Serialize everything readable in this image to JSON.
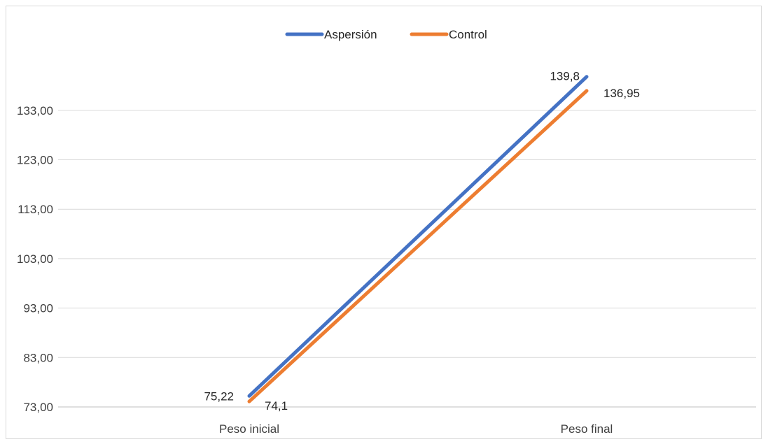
{
  "chart_data": {
    "type": "line",
    "categories": [
      "Peso inicial",
      "Peso final"
    ],
    "series": [
      {
        "name": "Aspersión",
        "color": "#4472C4",
        "values": [
          75.22,
          139.8
        ],
        "labels": [
          "75,22",
          "139,8"
        ]
      },
      {
        "name": "Control",
        "color": "#ED7D31",
        "values": [
          74.1,
          136.95
        ],
        "labels": [
          "74,1",
          "136,95"
        ]
      }
    ],
    "y_ticks": [
      73,
      83,
      93,
      103,
      113,
      123,
      133
    ],
    "y_tick_labels": [
      "73,00",
      "83,00",
      "93,00",
      "103,00",
      "113,00",
      "123,00",
      "133,00"
    ],
    "ylim": [
      73,
      143
    ],
    "grid": true,
    "legend_position": "top"
  }
}
